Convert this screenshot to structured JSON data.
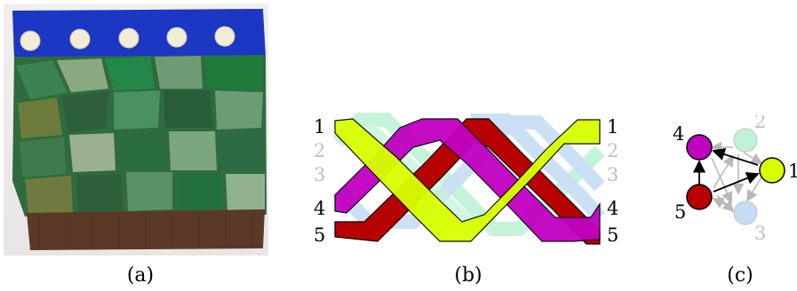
{
  "captions": {
    "a": "(a)",
    "b": "(b)",
    "c": "(c)"
  },
  "braid": {
    "left_labels": [
      "1",
      "2",
      "3",
      "4",
      "5"
    ],
    "right_labels": [
      "1",
      "2",
      "3",
      "4",
      "5"
    ],
    "active_strands": [
      "1",
      "4",
      "5"
    ],
    "faded_strands": [
      "2",
      "3"
    ]
  },
  "graph": {
    "nodes": [
      {
        "label": "4",
        "color": "#c000c0",
        "active": true
      },
      {
        "label": "2",
        "color": "#bff2d6",
        "active": false
      },
      {
        "label": "1",
        "color": "#d8ff00",
        "active": true
      },
      {
        "label": "5",
        "color": "#b80000",
        "active": true
      },
      {
        "label": "3",
        "color": "#c6dcf5",
        "active": false
      }
    ]
  },
  "colors": {
    "strand_1": "#d8ff00",
    "strand_2": "#bff2d6",
    "strand_3": "#c6dcf5",
    "strand_4": "#c000c0",
    "strand_5": "#b80000",
    "knit_border": "#1c37c4",
    "knit_bobble": "#f1ecd6",
    "knit_ribbing": "#5a3a26"
  }
}
